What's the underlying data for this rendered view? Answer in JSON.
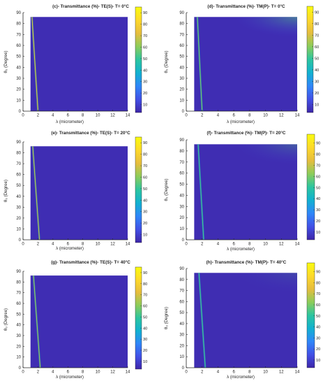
{
  "figure": {
    "colors": {
      "background": "#3a1f9e",
      "axis": "#262626",
      "colormap": [
        "#3e26a8",
        "#4250e6",
        "#2f86f8",
        "#12b1d0",
        "#2cc5a0",
        "#8ccc5a",
        "#e6bd3d",
        "#fdd92a",
        "#f9fb0e"
      ]
    }
  },
  "chart_data": [
    {
      "type": "heatmap",
      "id": "c",
      "title": "(c)- Transmittance (%)- TE(S)- T= 0°C",
      "xlabel": "λ (micrometer)",
      "ylabel": "θ₀ (Degree)",
      "xlim": [
        0,
        14
      ],
      "ylim": [
        0,
        90
      ],
      "xticks": [
        "0",
        "2",
        "4",
        "6",
        "8",
        "10",
        "12",
        "14"
      ],
      "yticks": [
        "0",
        "10",
        "20",
        "30",
        "40",
        "50",
        "60",
        "70",
        "80",
        "90"
      ],
      "data_extent": {
        "x": [
          1,
          14
        ],
        "y": [
          0,
          86
        ]
      },
      "colorbar_ticks": [
        "10",
        "20",
        "30",
        "40",
        "50",
        "60",
        "70",
        "80",
        "90"
      ],
      "colorbar_range": [
        3,
        95
      ],
      "background_value": 5,
      "ridge": {
        "x_at_bottom": 2.0,
        "x_at_top": 1.2,
        "peak_value": 75
      },
      "top_right_glow": 0
    },
    {
      "type": "heatmap",
      "id": "d",
      "title": "(d)- Transmittance (%)- TM(P)- T= 0°C",
      "xlabel": "λ (micrometer)",
      "ylabel": "θ₀ (Degree)",
      "xlim": [
        0,
        14
      ],
      "ylim": [
        0,
        90
      ],
      "xticks": [
        "0",
        "2",
        "4",
        "6",
        "8",
        "10",
        "12",
        "14"
      ],
      "yticks": [
        "0",
        "10",
        "20",
        "30",
        "40",
        "50",
        "60",
        "70",
        "80",
        "90"
      ],
      "data_extent": {
        "x": [
          1,
          14
        ],
        "y": [
          0,
          86
        ]
      },
      "colorbar_ticks": [
        "10",
        "20",
        "30",
        "40",
        "50",
        "60",
        "70",
        "80",
        "90"
      ],
      "colorbar_range": [
        3,
        95
      ],
      "background_value": 5,
      "ridge": {
        "x_at_bottom": 2.0,
        "x_at_top": 1.4,
        "peak_value": 60
      },
      "top_right_glow": 0.5
    },
    {
      "type": "heatmap",
      "id": "e",
      "title": "(e)- Transmittance (%)- TE(S)- T= 20°C",
      "xlabel": "λ (micrometer)",
      "ylabel": "θ₀ (Degree)",
      "xlim": [
        0,
        14
      ],
      "ylim": [
        0,
        90
      ],
      "xticks": [
        "0",
        "2",
        "4",
        "6",
        "8",
        "10",
        "12",
        "14"
      ],
      "yticks": [
        "0",
        "10",
        "20",
        "30",
        "40",
        "50",
        "60",
        "70",
        "80",
        "90"
      ],
      "data_extent": {
        "x": [
          1,
          14
        ],
        "y": [
          0,
          86
        ]
      },
      "colorbar_ticks": [
        "10",
        "20",
        "30",
        "40",
        "50",
        "60",
        "70",
        "80",
        "90"
      ],
      "colorbar_range": [
        3,
        95
      ],
      "background_value": 5,
      "ridge": {
        "x_at_bottom": 2.2,
        "x_at_top": 1.3,
        "peak_value": 70
      },
      "top_right_glow": 0
    },
    {
      "type": "heatmap",
      "id": "f",
      "title": "(f)- Transmittance (%)- TM(P)- T= 20°C",
      "xlabel": "λ (micrometer)",
      "ylabel": "θ₀ (Degree)",
      "xlim": [
        0,
        14
      ],
      "ylim": [
        0,
        90
      ],
      "xticks": [
        "0",
        "2",
        "4",
        "6",
        "8",
        "10",
        "12",
        "14"
      ],
      "yticks": [
        "0",
        "10",
        "20",
        "30",
        "40",
        "50",
        "60",
        "70",
        "80",
        "90"
      ],
      "data_extent": {
        "x": [
          1,
          14
        ],
        "y": [
          0,
          86
        ]
      },
      "colorbar_ticks": [
        "10",
        "20",
        "30",
        "40",
        "50",
        "60",
        "70",
        "80",
        "90"
      ],
      "colorbar_range": [
        3,
        98
      ],
      "background_value": 5,
      "ridge": {
        "x_at_bottom": 2.2,
        "x_at_top": 1.5,
        "peak_value": 55
      },
      "top_right_glow": 0.3
    },
    {
      "type": "heatmap",
      "id": "g",
      "title": "(g)- Transmittance (%)- TE(S)- T= 40°C",
      "xlabel": "λ (micrometer)",
      "ylabel": "θ₀ (Degree)",
      "xlim": [
        0,
        14
      ],
      "ylim": [
        0,
        90
      ],
      "xticks": [
        "0",
        "2",
        "4",
        "6",
        "8",
        "10",
        "12",
        "14"
      ],
      "yticks": [
        "0",
        "10",
        "20",
        "30",
        "40",
        "50",
        "60",
        "70",
        "80",
        "90"
      ],
      "data_extent": {
        "x": [
          1,
          14
        ],
        "y": [
          0,
          86
        ]
      },
      "colorbar_ticks": [
        "10",
        "20",
        "30",
        "40",
        "50",
        "60",
        "70",
        "80",
        "90"
      ],
      "colorbar_range": [
        3,
        95
      ],
      "background_value": 5,
      "ridge": {
        "x_at_bottom": 2.3,
        "x_at_top": 1.4,
        "peak_value": 65
      },
      "top_right_glow": 0
    },
    {
      "type": "heatmap",
      "id": "h",
      "title": "(h)- Transmittance (%)- TM(P)- T= 40°C",
      "xlabel": "λ (micrometer)",
      "ylabel": "θ₀ (Degree)",
      "xlim": [
        0,
        14
      ],
      "ylim": [
        0,
        90
      ],
      "xticks": [
        "0",
        "2",
        "4",
        "6",
        "8",
        "10",
        "12",
        "14"
      ],
      "yticks": [
        "0",
        "10",
        "20",
        "30",
        "40",
        "50",
        "60",
        "70",
        "80",
        "90"
      ],
      "data_extent": {
        "x": [
          1,
          14
        ],
        "y": [
          0,
          86
        ]
      },
      "colorbar_ticks": [
        "10",
        "20",
        "30",
        "40",
        "50",
        "60",
        "70",
        "80",
        "90"
      ],
      "colorbar_range": [
        3,
        98
      ],
      "background_value": 5,
      "ridge": {
        "x_at_bottom": 2.4,
        "x_at_top": 1.6,
        "peak_value": 55
      },
      "top_right_glow": 0.15
    }
  ]
}
